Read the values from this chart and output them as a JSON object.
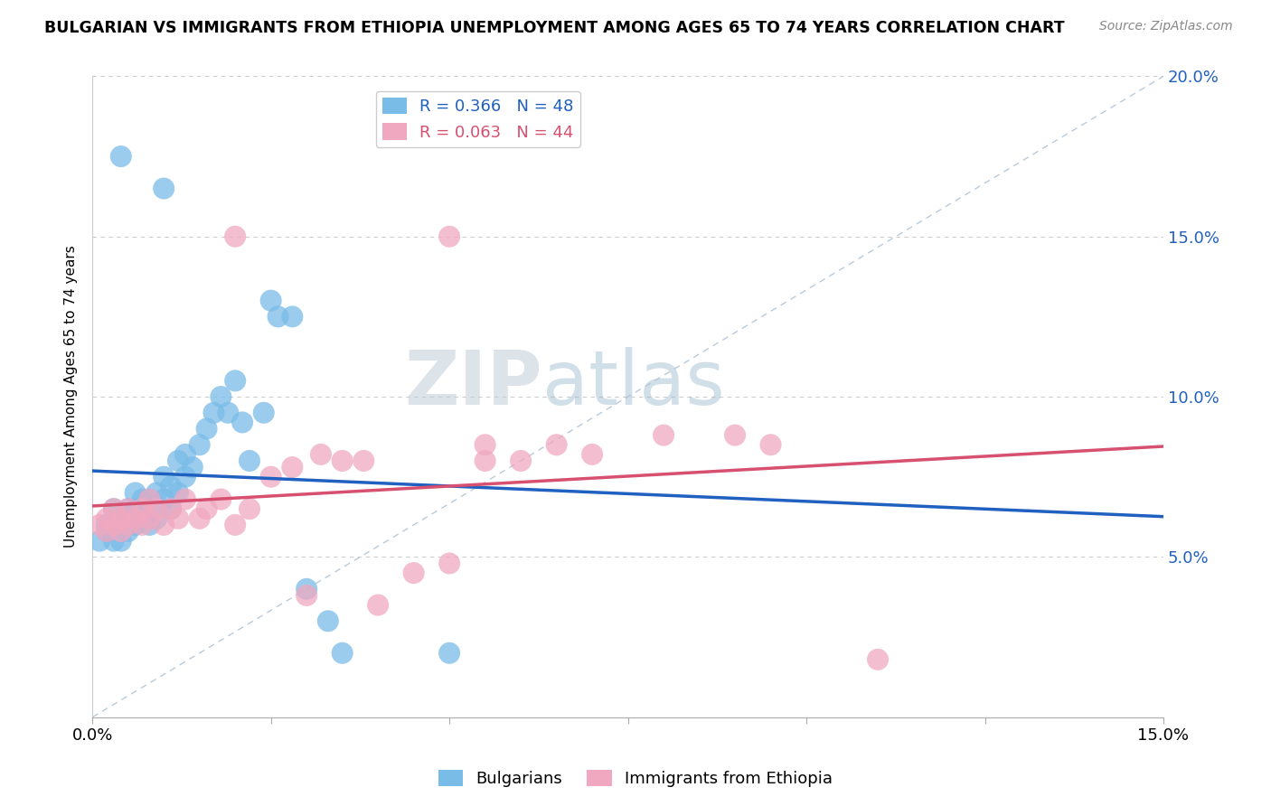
{
  "title": "BULGARIAN VS IMMIGRANTS FROM ETHIOPIA UNEMPLOYMENT AMONG AGES 65 TO 74 YEARS CORRELATION CHART",
  "source": "Source: ZipAtlas.com",
  "ylabel": "Unemployment Among Ages 65 to 74 years",
  "xlim": [
    0.0,
    0.15
  ],
  "ylim": [
    0.0,
    0.2
  ],
  "blue_label": "Bulgarians",
  "pink_label": "Immigrants from Ethiopia",
  "blue_R": 0.366,
  "blue_N": 48,
  "pink_R": 0.063,
  "pink_N": 44,
  "blue_color": "#7abce8",
  "pink_color": "#f0a8c0",
  "blue_line_color": "#2060c0",
  "pink_line_color": "#d85070",
  "diagonal_color": "#b0c4d8",
  "blue_x": [
    0.001,
    0.002,
    0.002,
    0.003,
    0.003,
    0.003,
    0.004,
    0.004,
    0.004,
    0.005,
    0.005,
    0.005,
    0.006,
    0.006,
    0.006,
    0.007,
    0.007,
    0.008,
    0.008,
    0.009,
    0.009,
    0.01,
    0.01,
    0.011,
    0.011,
    0.012,
    0.012,
    0.013,
    0.013,
    0.014,
    0.015,
    0.016,
    0.017,
    0.018,
    0.019,
    0.02,
    0.021,
    0.022,
    0.024,
    0.025,
    0.026,
    0.028,
    0.03,
    0.033,
    0.035,
    0.05,
    0.01,
    0.004
  ],
  "blue_y": [
    0.055,
    0.058,
    0.06,
    0.055,
    0.06,
    0.065,
    0.055,
    0.06,
    0.062,
    0.058,
    0.06,
    0.065,
    0.06,
    0.065,
    0.07,
    0.062,
    0.068,
    0.06,
    0.068,
    0.062,
    0.07,
    0.068,
    0.075,
    0.065,
    0.072,
    0.07,
    0.08,
    0.075,
    0.082,
    0.078,
    0.085,
    0.09,
    0.095,
    0.1,
    0.095,
    0.105,
    0.092,
    0.08,
    0.095,
    0.13,
    0.125,
    0.125,
    0.04,
    0.03,
    0.02,
    0.02,
    0.165,
    0.175
  ],
  "pink_x": [
    0.001,
    0.002,
    0.002,
    0.003,
    0.003,
    0.004,
    0.004,
    0.005,
    0.005,
    0.006,
    0.007,
    0.007,
    0.008,
    0.008,
    0.009,
    0.01,
    0.011,
    0.012,
    0.013,
    0.015,
    0.016,
    0.018,
    0.02,
    0.022,
    0.025,
    0.028,
    0.03,
    0.032,
    0.035,
    0.038,
    0.04,
    0.045,
    0.05,
    0.055,
    0.06,
    0.065,
    0.07,
    0.08,
    0.09,
    0.095,
    0.02,
    0.05,
    0.055,
    0.11
  ],
  "pink_y": [
    0.06,
    0.058,
    0.062,
    0.06,
    0.065,
    0.058,
    0.062,
    0.06,
    0.065,
    0.062,
    0.06,
    0.065,
    0.062,
    0.068,
    0.065,
    0.06,
    0.065,
    0.062,
    0.068,
    0.062,
    0.065,
    0.068,
    0.06,
    0.065,
    0.075,
    0.078,
    0.038,
    0.082,
    0.08,
    0.08,
    0.035,
    0.045,
    0.048,
    0.08,
    0.08,
    0.085,
    0.082,
    0.088,
    0.088,
    0.085,
    0.15,
    0.15,
    0.085,
    0.018
  ]
}
